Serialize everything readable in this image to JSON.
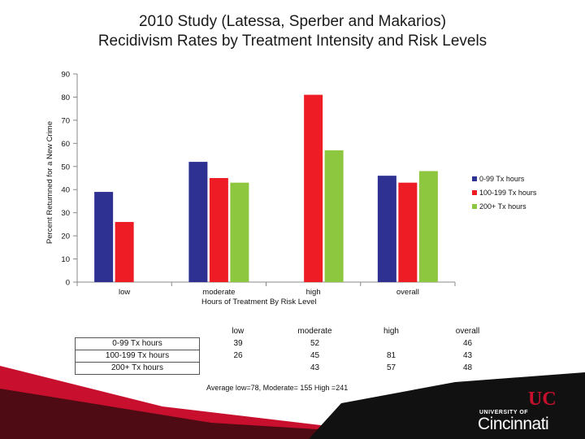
{
  "chart_data": {
    "type": "bar",
    "title": "2010 Study (Latessa, Sperber and Makarios)",
    "subtitle": "Recidivism Rates by Treatment Intensity and Risk Levels",
    "categories": [
      "low",
      "moderate",
      "high",
      "overall"
    ],
    "series": [
      {
        "name": "0-99 Tx hours",
        "values": [
          39,
          52,
          null,
          46
        ],
        "color": "#2e3192"
      },
      {
        "name": "100-199 Tx hours",
        "values": [
          26,
          45,
          81,
          43
        ],
        "color": "#ee1c24"
      },
      {
        "name": "200+ Tx hours",
        "values": [
          null,
          43,
          57,
          48
        ],
        "color": "#8dc63f"
      }
    ],
    "xlabel": "Hours of Treatment By Risk Level",
    "ylabel": "Percent Returnned for a New Crime",
    "ylim": [
      0,
      90
    ],
    "yticks": [
      "0",
      "10",
      "20",
      "30",
      "40",
      "50",
      "60",
      "70",
      "80",
      "90"
    ],
    "legend_position": "right"
  },
  "table": {
    "headers": [
      "low",
      "moderate",
      "high",
      "overall"
    ],
    "rows": [
      {
        "label": "0-99 Tx hours",
        "cells": [
          "39",
          "52",
          "",
          "46"
        ]
      },
      {
        "label": "100-199 Tx hours",
        "cells": [
          "26",
          "45",
          "81",
          "43"
        ]
      },
      {
        "label": "200+ Tx hours",
        "cells": [
          "",
          "43",
          "57",
          "48"
        ]
      }
    ]
  },
  "note": "Average low=78, Moderate= 155 High =241",
  "logo": {
    "line1": "UNIVERSITY OF",
    "line2": "Cincinnati",
    "mono": "UC"
  }
}
